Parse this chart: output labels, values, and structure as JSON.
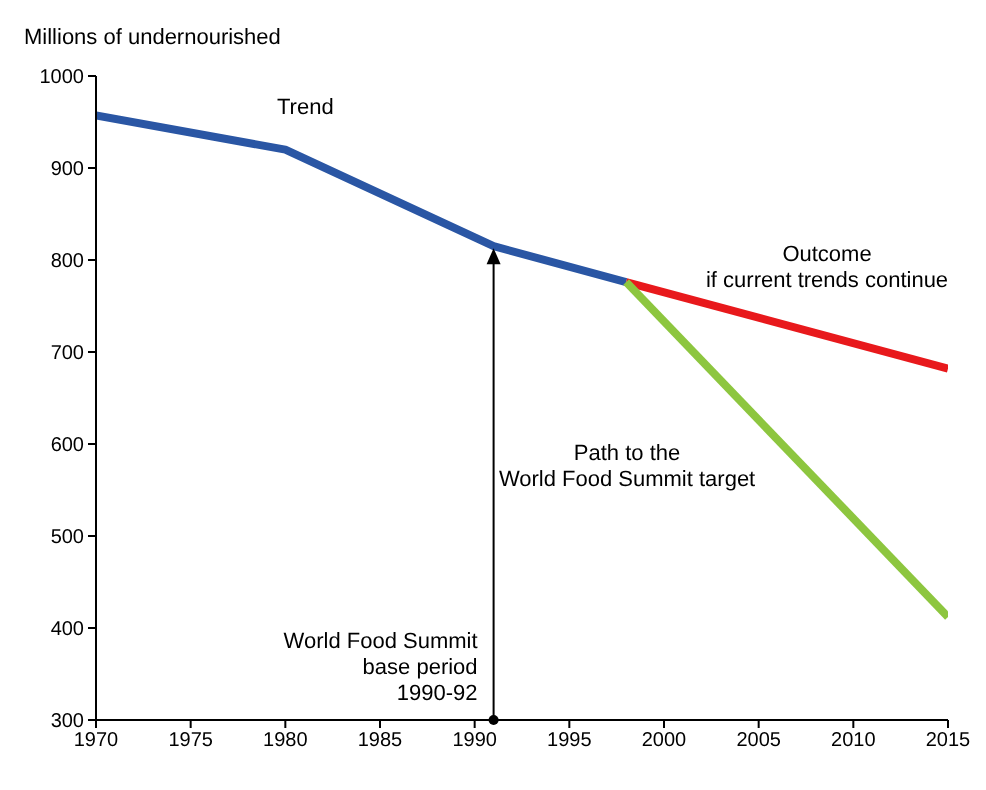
{
  "chart_data": {
    "type": "line",
    "ylabel": "Millions of undernourished",
    "xlim": [
      1970,
      2015
    ],
    "xticks": [
      1970,
      1975,
      1980,
      1985,
      1990,
      1995,
      2000,
      2005,
      2010,
      2015
    ],
    "ylim": [
      300,
      1000
    ],
    "yticks": [
      300,
      400,
      500,
      600,
      700,
      800,
      900,
      1000
    ],
    "marker": "none",
    "line_style": "solid",
    "series": [
      {
        "name": "Trend",
        "color": "#2a56a4",
        "x": [
          1970,
          1980,
          1991,
          1998
        ],
        "values": [
          957,
          920,
          815,
          776
        ]
      },
      {
        "name": "Outcome\nif current trends continue",
        "color": "#e8191c",
        "x": [
          1998,
          2015
        ],
        "values": [
          776,
          682
        ]
      },
      {
        "name": "Path to the\nWorld Food Summit target",
        "color": "#8dc63f",
        "x": [
          1998,
          2015
        ],
        "values": [
          776,
          412
        ]
      }
    ],
    "annotations": [
      {
        "text": "World Food Summit\nbase period\n1990-92",
        "x": 1991,
        "y": 300
      }
    ]
  }
}
